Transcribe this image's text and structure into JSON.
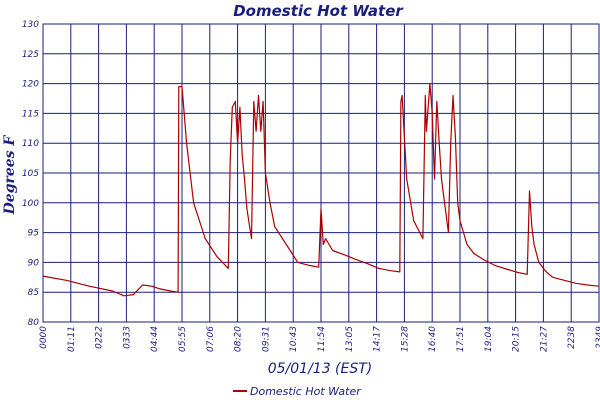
{
  "chart_data": {
    "type": "line",
    "title": "Domestic Hot Water",
    "xlabel": "05/01/13 (EST)",
    "ylabel": "Degrees F",
    "ylim": [
      80,
      130
    ],
    "yticks": [
      80,
      85,
      90,
      95,
      100,
      105,
      110,
      115,
      120,
      125,
      130
    ],
    "xlim_hours": [
      0,
      24
    ],
    "xtick_labels": [
      "0000",
      "01:11",
      "0222",
      "0333",
      "04:44",
      "05:55",
      "07:06",
      "08:20",
      "09:31",
      "10:43",
      "11:54",
      "13:05",
      "14:17",
      "15:28",
      "16:40",
      "17:51",
      "19:04",
      "20:15",
      "21:27",
      "2238",
      "2349"
    ],
    "grid": true,
    "legend_position": "bottom-center",
    "series": [
      {
        "name": "Domestic Hot Water",
        "color": "#aa0000",
        "x_hours": [
          0,
          1,
          2,
          3,
          3.5,
          3.9,
          4.3,
          4.7,
          5,
          5.5,
          5.83,
          5.86,
          6.0,
          6.2,
          6.5,
          7.0,
          7.5,
          8.0,
          8.08,
          8.17,
          8.3,
          8.4,
          8.5,
          8.6,
          8.7,
          8.8,
          9.0,
          9.1,
          9.2,
          9.3,
          9.4,
          9.5,
          9.6,
          9.8,
          10.0,
          10.5,
          11,
          11.5,
          11.9,
          12.0,
          12.1,
          12.2,
          12.5,
          13,
          13.5,
          14,
          14.5,
          15.0,
          15.4,
          15.45,
          15.5,
          15.6,
          15.7,
          16.0,
          16.4,
          16.5,
          16.55,
          16.7,
          16.8,
          16.9,
          17.0,
          17.1,
          17.2,
          17.4,
          17.5,
          17.6,
          17.7,
          17.8,
          17.9,
          18.0,
          18.3,
          18.6,
          19.0,
          19.5,
          20,
          20.5,
          20.9,
          21.0,
          21.1,
          21.2,
          21.4,
          21.7,
          22.0,
          22.5,
          23,
          23.5,
          24.0
        ],
        "values": [
          87.7,
          87.0,
          86.0,
          85.2,
          84.4,
          84.6,
          86.2,
          86.0,
          85.6,
          85.2,
          85.0,
          119.5,
          119.5,
          110,
          100,
          94,
          91,
          89,
          107,
          116,
          117,
          110,
          116,
          108,
          104,
          99,
          94,
          117,
          112,
          118,
          112,
          117,
          105,
          100,
          96,
          93,
          90,
          89.5,
          89.2,
          99,
          93,
          94,
          92,
          91.3,
          90.5,
          89.8,
          89.0,
          88.6,
          88.4,
          117,
          118,
          111,
          104,
          97,
          94,
          118,
          112,
          120,
          115,
          104,
          117,
          110,
          104,
          98,
          95,
          110,
          118,
          111,
          100,
          97,
          93,
          91.5,
          90.5,
          89.5,
          88.9,
          88.3,
          88.0,
          102,
          96,
          93,
          90,
          88.5,
          87.5,
          87.0,
          86.5,
          86.2,
          86.0
        ]
      }
    ]
  }
}
